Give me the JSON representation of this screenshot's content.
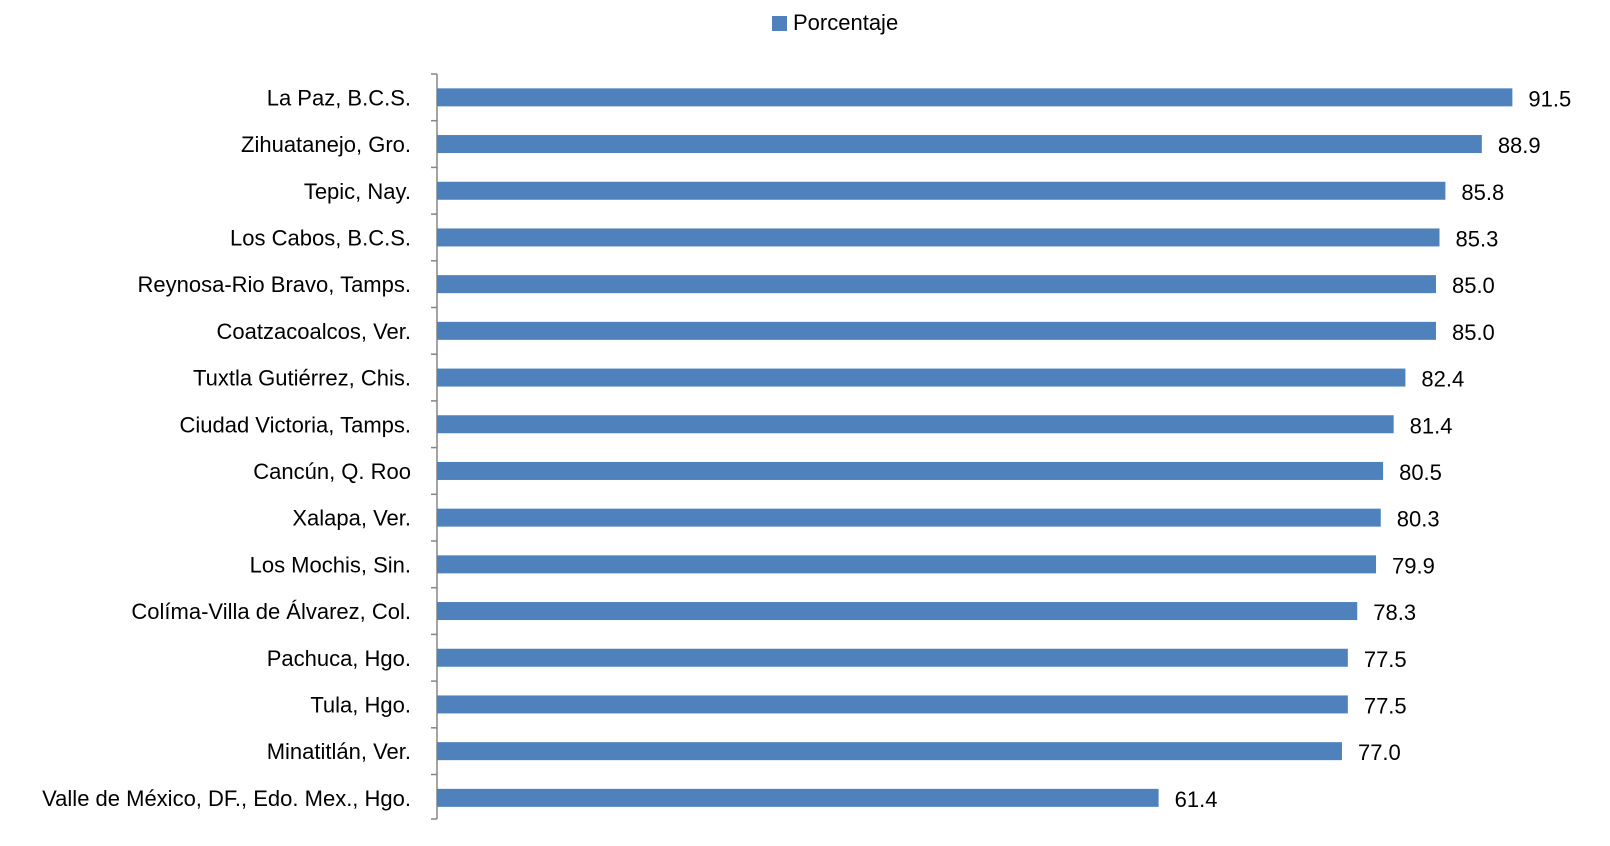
{
  "colors": {
    "bar": "#4f81bd",
    "axis": "#868686",
    "text": "#000000"
  },
  "chart_data": {
    "type": "bar",
    "orientation": "horizontal",
    "legend": {
      "position": "top",
      "entries": [
        "Porcentaje"
      ]
    },
    "grid": false,
    "xlim": [
      0,
      93
    ],
    "categories": [
      "La Paz, B.C.S.",
      "Zihuatanejo, Gro.",
      "Tepic, Nay.",
      "Los Cabos, B.C.S.",
      "Reynosa-Rio Bravo, Tamps.",
      "Coatzacoalcos, Ver.",
      "Tuxtla Gutiérrez, Chis.",
      "Ciudad Victoria, Tamps.",
      "Cancún, Q. Roo",
      "Xalapa, Ver.",
      "Los Mochis, Sin.",
      "Colíma-Villa de Álvarez, Col.",
      "Pachuca, Hgo.",
      "Tula, Hgo.",
      "Minatitlán, Ver.",
      "Valle de México, DF., Edo. Mex., Hgo."
    ],
    "series": [
      {
        "name": "Porcentaje",
        "values": [
          91.5,
          88.9,
          85.8,
          85.3,
          85.0,
          85.0,
          82.4,
          81.4,
          80.5,
          80.3,
          79.9,
          78.3,
          77.5,
          77.5,
          77.0,
          61.4
        ],
        "labels": [
          "91.5",
          "88.9",
          "85.8",
          "85.3",
          "85.0",
          "85.0",
          "82.4",
          "81.4",
          "80.5",
          "80.3",
          "79.9",
          "78.3",
          "77.5",
          "77.5",
          "77.0",
          "61.4"
        ]
      }
    ]
  }
}
